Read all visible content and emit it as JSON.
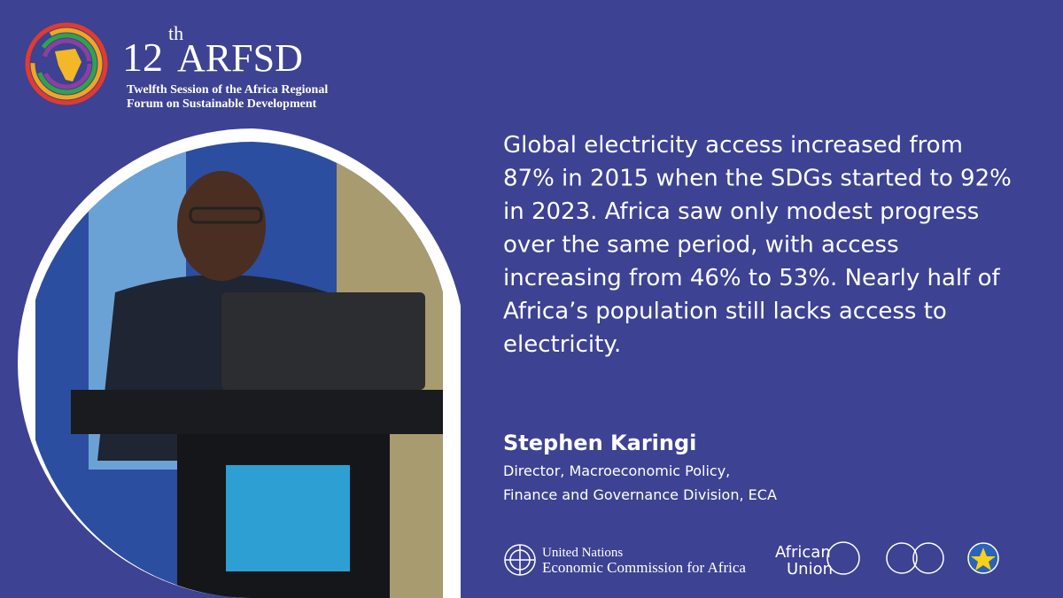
{
  "header": {
    "number": "12",
    "ordinal": "th",
    "acronym": "ARFSD",
    "subtitle_lines": [
      "Twelfth  Session of the Africa Regional",
      "Forum on Sustainable Development"
    ]
  },
  "quote": {
    "lines": [
      "Global electricity access increased from",
      "87% in 2015 when the SDGs started to 92%",
      "in 2023. Africa saw only modest progress",
      "over the same period, with access",
      "increasing from 46% to 53%. Nearly half of",
      "Africa’s population still lacks access to",
      "electricity."
    ]
  },
  "speaker": {
    "name": "Stephen Karingi",
    "role_lines": [
      "Director, Macroeconomic Policy,",
      "Finance and Governance Division, ECA"
    ]
  },
  "footer": {
    "un_lines": [
      "United Nations",
      "Economic Commission for Africa"
    ],
    "au_lines": [
      "African",
      "Union"
    ]
  }
}
